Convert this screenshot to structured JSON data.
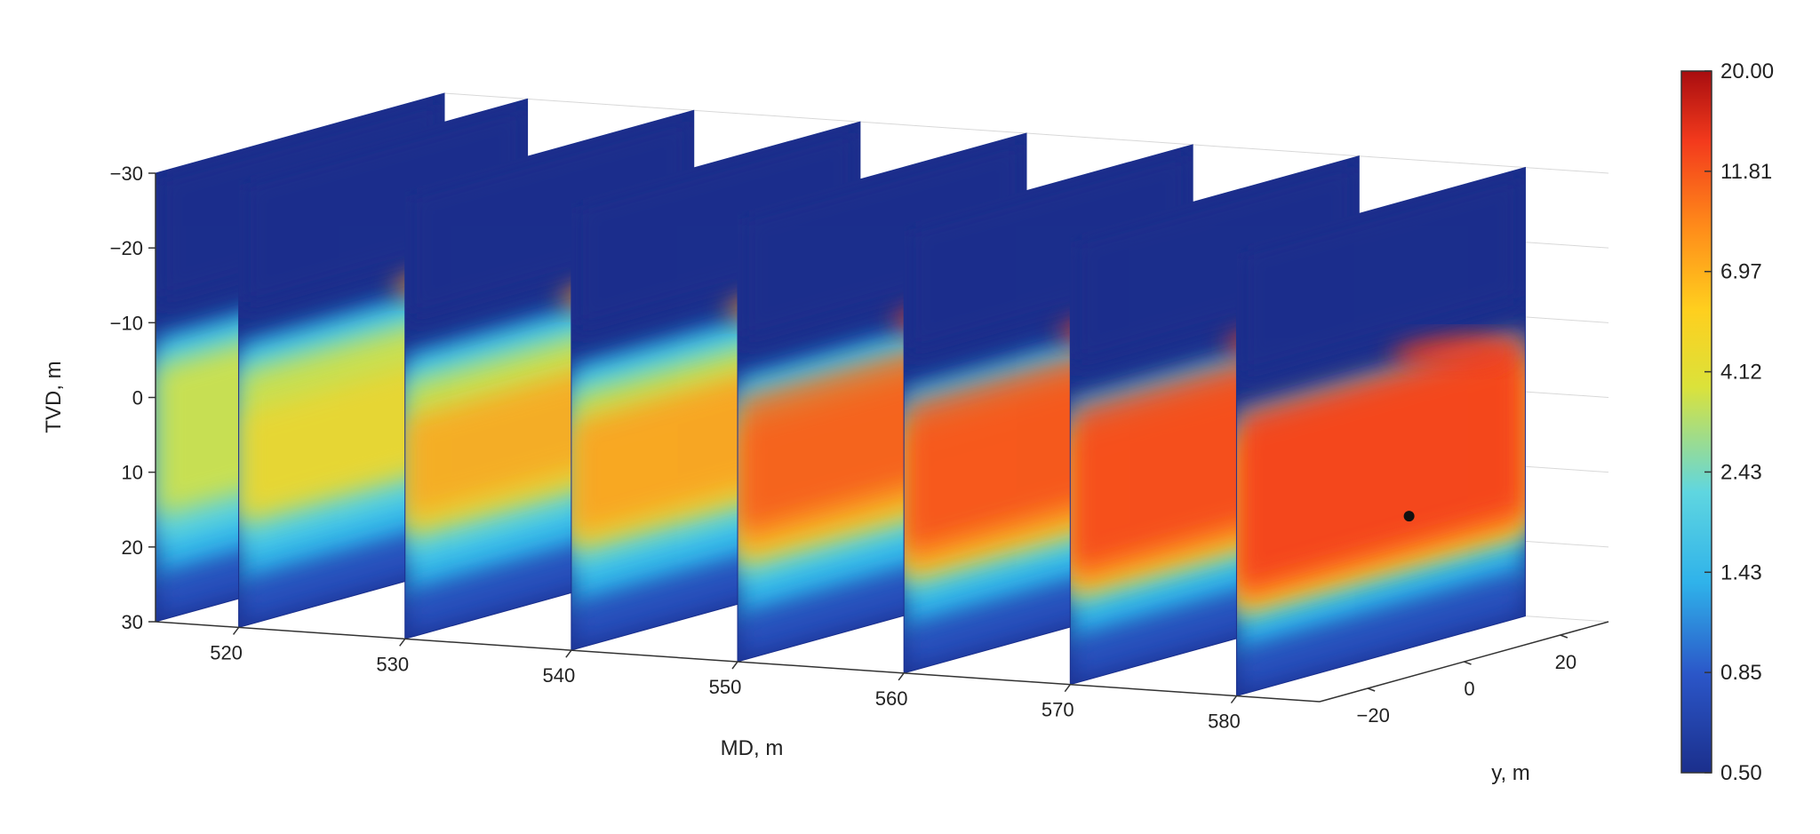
{
  "chart_data": {
    "type": "heatmap",
    "title": "",
    "axes": {
      "vertical": {
        "label": "TVD, m",
        "ticks": [
          "−30",
          "−20",
          "−10",
          "0",
          "10",
          "20",
          "30"
        ],
        "values": [
          -30,
          -20,
          -10,
          0,
          10,
          20,
          30
        ],
        "range": [
          -30,
          30
        ]
      },
      "md": {
        "label": "MD, m",
        "ticks": [
          "520",
          "530",
          "540",
          "550",
          "560",
          "570",
          "580"
        ],
        "values": [
          520,
          530,
          540,
          550,
          560,
          570,
          580
        ],
        "range": [
          515,
          585
        ]
      },
      "y": {
        "label": "y, m",
        "ticks": [
          "−20",
          "0",
          "20"
        ],
        "values": [
          -20,
          0,
          20
        ],
        "range": [
          -30,
          30
        ]
      }
    },
    "slices_md": [
      515,
      520,
      530,
      540,
      550,
      560,
      570,
      580
    ],
    "colorbar": {
      "scale": "log",
      "ticks": [
        "20.00",
        "11.81",
        "6.97",
        "4.12",
        "2.43",
        "1.43",
        "0.85",
        "0.50"
      ],
      "min": 0.5,
      "max": 20
    },
    "colormap": [
      "#1b2f8c",
      "#2b56c8",
      "#2fb2ea",
      "#5fd6e0",
      "#dbe23a",
      "#ffcf1e",
      "#ff8a1a",
      "#f33a1c",
      "#a80d10"
    ],
    "grid": true
  }
}
